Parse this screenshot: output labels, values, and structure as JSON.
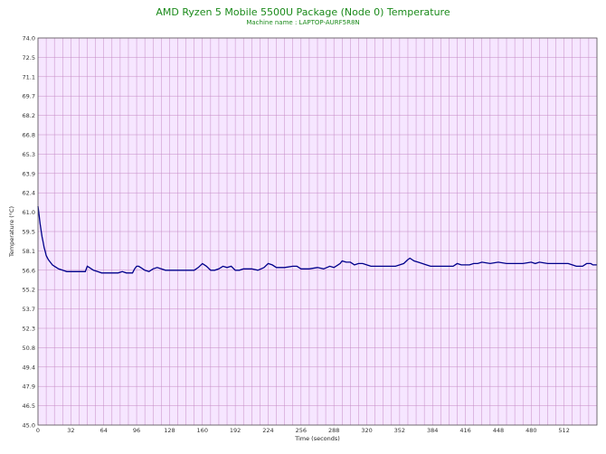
{
  "title": "AMD Ryzen 5 Mobile 5500U Package (Node 0) Temperature",
  "subtitle": "Machine name : LAPTOP-AURF5R8N",
  "colors": {
    "plot_bg": "#f6e6ff",
    "grid": "#c58ac5",
    "line": "#00008b",
    "title": "#1a8a1a"
  },
  "chart_data": {
    "type": "line",
    "title": "AMD Ryzen 5 Mobile 5500U Package (Node 0) Temperature",
    "subtitle": "Machine name : LAPTOP-AURF5R8N",
    "xlabel": "Time (seconds)",
    "ylabel": "Temperature (°C)",
    "xlim": [
      0,
      544
    ],
    "ylim": [
      45.0,
      74.0
    ],
    "grid": true,
    "legend": "none",
    "x_ticks": [
      0,
      32,
      64,
      96,
      128,
      160,
      192,
      224,
      256,
      288,
      320,
      352,
      384,
      416,
      448,
      480,
      512
    ],
    "y_ticks": [
      "45.0",
      "46.5",
      "47.9",
      "49.4",
      "50.8",
      "52.3",
      "53.7",
      "55.2",
      "56.6",
      "58.1",
      "59.5",
      "61.0",
      "62.4",
      "63.9",
      "65.3",
      "66.8",
      "68.2",
      "69.7",
      "71.1",
      "72.5",
      "74.0"
    ],
    "series": [
      {
        "values": [
          [
            0,
            61.4
          ],
          [
            1,
            60.8
          ],
          [
            2,
            60.1
          ],
          [
            3,
            59.6
          ],
          [
            4,
            59.1
          ],
          [
            5,
            58.7
          ],
          [
            6,
            58.3
          ],
          [
            7,
            58.0
          ],
          [
            8,
            57.7
          ],
          [
            10,
            57.4
          ],
          [
            12,
            57.2
          ],
          [
            14,
            57.0
          ],
          [
            16,
            56.9
          ],
          [
            18,
            56.8
          ],
          [
            20,
            56.7
          ],
          [
            24,
            56.6
          ],
          [
            28,
            56.5
          ],
          [
            34,
            56.5
          ],
          [
            40,
            56.5
          ],
          [
            46,
            56.5
          ],
          [
            48,
            56.9
          ],
          [
            50,
            56.8
          ],
          [
            54,
            56.6
          ],
          [
            58,
            56.5
          ],
          [
            62,
            56.4
          ],
          [
            72,
            56.4
          ],
          [
            78,
            56.4
          ],
          [
            82,
            56.5
          ],
          [
            86,
            56.4
          ],
          [
            92,
            56.4
          ],
          [
            94,
            56.7
          ],
          [
            96,
            56.9
          ],
          [
            98,
            56.9
          ],
          [
            100,
            56.8
          ],
          [
            104,
            56.6
          ],
          [
            108,
            56.5
          ],
          [
            112,
            56.7
          ],
          [
            116,
            56.8
          ],
          [
            120,
            56.7
          ],
          [
            124,
            56.6
          ],
          [
            128,
            56.6
          ],
          [
            136,
            56.6
          ],
          [
            144,
            56.6
          ],
          [
            152,
            56.6
          ],
          [
            156,
            56.8
          ],
          [
            160,
            57.1
          ],
          [
            164,
            56.9
          ],
          [
            168,
            56.6
          ],
          [
            172,
            56.6
          ],
          [
            176,
            56.7
          ],
          [
            180,
            56.9
          ],
          [
            184,
            56.8
          ],
          [
            188,
            56.9
          ],
          [
            192,
            56.6
          ],
          [
            196,
            56.6
          ],
          [
            200,
            56.7
          ],
          [
            208,
            56.7
          ],
          [
            214,
            56.6
          ],
          [
            220,
            56.8
          ],
          [
            224,
            57.1
          ],
          [
            228,
            57.0
          ],
          [
            232,
            56.8
          ],
          [
            240,
            56.8
          ],
          [
            248,
            56.9
          ],
          [
            252,
            56.9
          ],
          [
            256,
            56.7
          ],
          [
            264,
            56.7
          ],
          [
            272,
            56.8
          ],
          [
            278,
            56.7
          ],
          [
            284,
            56.9
          ],
          [
            288,
            56.8
          ],
          [
            292,
            57.0
          ],
          [
            294,
            57.1
          ],
          [
            296,
            57.3
          ],
          [
            300,
            57.2
          ],
          [
            304,
            57.2
          ],
          [
            308,
            57.0
          ],
          [
            312,
            57.1
          ],
          [
            316,
            57.1
          ],
          [
            320,
            57.0
          ],
          [
            324,
            56.9
          ],
          [
            332,
            56.9
          ],
          [
            340,
            56.9
          ],
          [
            348,
            56.9
          ],
          [
            352,
            57.0
          ],
          [
            356,
            57.1
          ],
          [
            360,
            57.4
          ],
          [
            362,
            57.5
          ],
          [
            366,
            57.3
          ],
          [
            370,
            57.2
          ],
          [
            374,
            57.1
          ],
          [
            378,
            57.0
          ],
          [
            382,
            56.9
          ],
          [
            392,
            56.9
          ],
          [
            400,
            56.9
          ],
          [
            404,
            56.9
          ],
          [
            408,
            57.1
          ],
          [
            412,
            57.0
          ],
          [
            416,
            57.0
          ],
          [
            420,
            57.0
          ],
          [
            424,
            57.1
          ],
          [
            428,
            57.1
          ],
          [
            432,
            57.2
          ],
          [
            440,
            57.1
          ],
          [
            448,
            57.2
          ],
          [
            456,
            57.1
          ],
          [
            464,
            57.1
          ],
          [
            472,
            57.1
          ],
          [
            480,
            57.2
          ],
          [
            484,
            57.1
          ],
          [
            488,
            57.2
          ],
          [
            496,
            57.1
          ],
          [
            504,
            57.1
          ],
          [
            512,
            57.1
          ],
          [
            516,
            57.1
          ],
          [
            520,
            57.0
          ],
          [
            524,
            56.9
          ],
          [
            530,
            56.9
          ],
          [
            534,
            57.1
          ],
          [
            538,
            57.1
          ],
          [
            540,
            57.0
          ],
          [
            544,
            57.0
          ]
        ]
      }
    ]
  }
}
